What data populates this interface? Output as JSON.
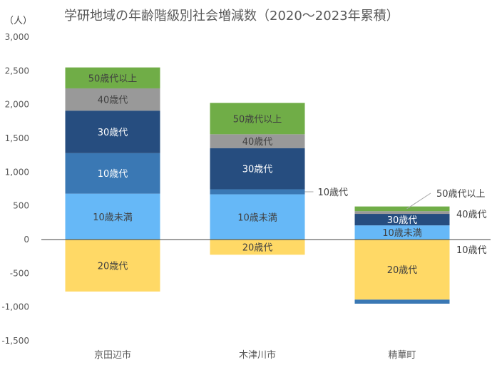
{
  "title": "学研地域の年齢階級別社会増減数（2020～2023年累積）",
  "unit_label": "（人）",
  "colors": {
    "50s_plus": "#70ad47",
    "40s": "#999999",
    "30s": "#264d7f",
    "10s": "#3a78b4",
    "under10": "#66b8f7",
    "20s": "#ffd966",
    "axis_text": "#595959",
    "zero_line": "#404040"
  },
  "chart_data": {
    "type": "bar",
    "stacked": true,
    "ylim": [
      -1500,
      3000
    ],
    "yticks": [
      3000,
      2500,
      2000,
      1500,
      1000,
      500,
      0,
      -500,
      -1000,
      -1500
    ],
    "ytick_labels": [
      "3,000",
      "2,500",
      "2,000",
      "1,500",
      "1,000",
      "500",
      "0",
      "-500",
      "-1,000",
      "-1,500"
    ],
    "grid": false,
    "categories": [
      "京田辺市",
      "木津川市",
      "精華町"
    ],
    "series": [
      {
        "name": "20歳代",
        "color_key": "20s",
        "values": [
          -770,
          -225,
          -890
        ]
      },
      {
        "name": "10歳代",
        "color_key": "10s",
        "values": [
          0,
          0,
          -60
        ]
      },
      {
        "name": "10歳未満",
        "color_key": "under10",
        "values": [
          680,
          670,
          210
        ]
      },
      {
        "name": "10歳代",
        "color_key": "10s",
        "values": [
          600,
          75,
          0
        ]
      },
      {
        "name": "30歳代",
        "color_key": "30s",
        "values": [
          630,
          610,
          170
        ]
      },
      {
        "name": "40歳代",
        "color_key": "40s",
        "values": [
          330,
          205,
          40
        ]
      },
      {
        "name": "50歳代以上",
        "color_key": "50s_plus",
        "values": [
          310,
          465,
          70
        ]
      }
    ],
    "segment_labels": [
      {
        "cat": 0,
        "series": 0,
        "text": "20歳代"
      },
      {
        "cat": 0,
        "series": 2,
        "text": "10歳未満"
      },
      {
        "cat": 0,
        "series": 3,
        "text": "10歳代"
      },
      {
        "cat": 0,
        "series": 4,
        "text": "30歳代"
      },
      {
        "cat": 0,
        "series": 5,
        "text": "40歳代"
      },
      {
        "cat": 0,
        "series": 6,
        "text": "50歳代以上"
      },
      {
        "cat": 1,
        "series": 0,
        "text": "20歳代"
      },
      {
        "cat": 1,
        "series": 2,
        "text": "10歳未満"
      },
      {
        "cat": 1,
        "series": 4,
        "text": "30歳代"
      },
      {
        "cat": 1,
        "series": 5,
        "text": "40歳代"
      },
      {
        "cat": 1,
        "series": 6,
        "text": "50歳代以上"
      },
      {
        "cat": 2,
        "series": 0,
        "text": "20歳代"
      },
      {
        "cat": 2,
        "series": 2,
        "text": "10歳未満"
      },
      {
        "cat": 2,
        "series": 4,
        "text": "30歳代"
      }
    ],
    "callout_labels": [
      {
        "cat": 1,
        "series": 3,
        "text": "10歳代"
      },
      {
        "cat": 2,
        "series": 6,
        "text": "50歳代以上"
      },
      {
        "cat": 2,
        "series": 5,
        "text": "40歳代"
      },
      {
        "cat": 2,
        "series": 1,
        "text": "10歳代"
      }
    ]
  }
}
